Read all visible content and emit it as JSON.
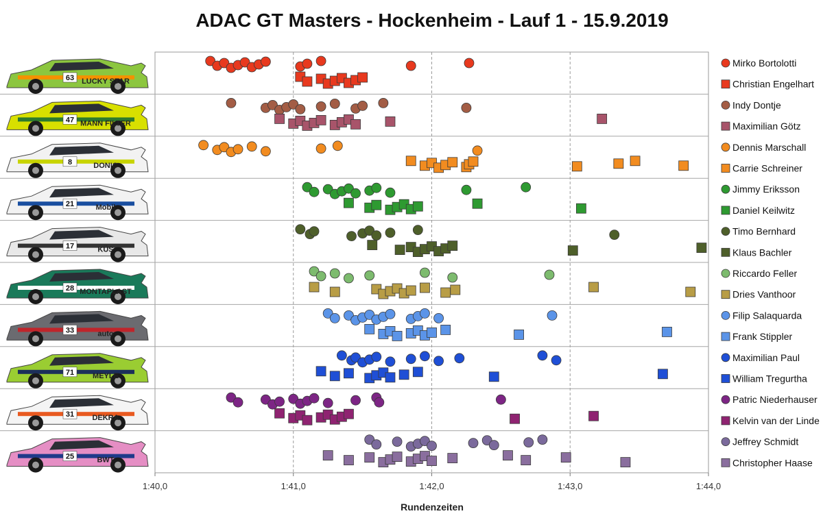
{
  "chart_data": {
    "type": "scatter",
    "title": "ADAC GT Masters - Hockenheim - Lauf 1 - 15.9.2019",
    "xlabel": "Rundenzeiten",
    "ylabel": "",
    "x_unit_note": "lap time in seconds",
    "xlim": [
      100.0,
      104.0
    ],
    "x_ticks": [
      100.0,
      101.0,
      102.0,
      103.0,
      104.0
    ],
    "x_tick_labels": [
      "1:40,0",
      "1:41,0",
      "1:42,0",
      "1:43,0",
      "1:44,0"
    ],
    "grid": "vertical dashed",
    "legend_position": "right",
    "series": [
      {
        "name": "Mirko Bortolotti",
        "marker": "circle",
        "color": "#e8391e",
        "team": 1,
        "x": [
          100.4,
          100.45,
          100.5,
          100.55,
          100.6,
          100.65,
          100.7,
          100.75,
          100.8,
          101.05,
          101.1,
          101.2,
          101.85,
          102.27
        ]
      },
      {
        "name": "Christian Engelhart",
        "marker": "square",
        "color": "#e8391e",
        "team": 1,
        "x": [
          101.05,
          101.1,
          101.2,
          101.25,
          101.3,
          101.35,
          101.4,
          101.45,
          101.5
        ]
      },
      {
        "name": "Indy Dontje",
        "marker": "circle",
        "color": "#a35d45",
        "team": 2,
        "x": [
          100.55,
          100.8,
          100.85,
          100.9,
          100.95,
          101.0,
          101.05,
          101.2,
          101.3,
          101.45,
          101.5,
          101.65,
          102.25
        ]
      },
      {
        "name": "Maximilian Götz",
        "marker": "square",
        "color": "#a8546a",
        "team": 2,
        "x": [
          100.9,
          101.0,
          101.05,
          101.1,
          101.15,
          101.2,
          101.3,
          101.35,
          101.4,
          101.45,
          101.7,
          103.23
        ]
      },
      {
        "name": "Dennis Marschall",
        "marker": "circle",
        "color": "#f28c20",
        "team": 3,
        "x": [
          100.35,
          100.45,
          100.5,
          100.55,
          100.6,
          100.7,
          100.8,
          101.2,
          101.32,
          102.33
        ]
      },
      {
        "name": "Carrie Schreiner",
        "marker": "square",
        "color": "#f28c20",
        "team": 3,
        "x": [
          101.85,
          101.95,
          102.0,
          102.05,
          102.1,
          102.15,
          102.25,
          102.27,
          102.3,
          103.05,
          103.35,
          103.47,
          103.82
        ]
      },
      {
        "name": "Jimmy Eriksson",
        "marker": "circle",
        "color": "#2e9a31",
        "team": 4,
        "x": [
          101.1,
          101.15,
          101.25,
          101.3,
          101.35,
          101.4,
          101.45,
          101.55,
          101.6,
          101.7,
          102.25,
          102.68
        ]
      },
      {
        "name": "Daniel Keilwitz",
        "marker": "square",
        "color": "#2e9a31",
        "team": 4,
        "x": [
          101.4,
          101.55,
          101.6,
          101.7,
          101.75,
          101.8,
          101.85,
          101.9,
          102.33,
          103.08
        ]
      },
      {
        "name": "Timo Bernhard",
        "marker": "circle",
        "color": "#4e5f2a",
        "team": 5,
        "x": [
          101.05,
          101.12,
          101.15,
          101.42,
          101.5,
          101.55,
          101.6,
          101.7,
          101.9,
          103.32
        ]
      },
      {
        "name": "Klaus Bachler",
        "marker": "square",
        "color": "#4e5f2a",
        "team": 5,
        "x": [
          101.57,
          101.77,
          101.85,
          101.9,
          101.95,
          102.0,
          102.05,
          102.1,
          102.15,
          103.02,
          103.95
        ]
      },
      {
        "name": "Riccardo Feller",
        "marker": "circle",
        "color": "#7dbb6e",
        "team": 6,
        "x": [
          101.15,
          101.2,
          101.3,
          101.4,
          101.55,
          101.95,
          102.15,
          102.85
        ]
      },
      {
        "name": "Dries Vanthoor",
        "marker": "square",
        "color": "#b89d46",
        "team": 6,
        "x": [
          101.15,
          101.3,
          101.6,
          101.65,
          101.7,
          101.75,
          101.8,
          101.85,
          101.95,
          102.1,
          102.17,
          103.17,
          103.87
        ]
      },
      {
        "name": "Filip Salaquarda",
        "marker": "circle",
        "color": "#5b94e8",
        "team": 7,
        "x": [
          101.25,
          101.3,
          101.4,
          101.45,
          101.5,
          101.55,
          101.6,
          101.65,
          101.7,
          101.85,
          101.9,
          101.95,
          102.05,
          102.87
        ]
      },
      {
        "name": "Frank Stippler",
        "marker": "square",
        "color": "#5b94e8",
        "team": 7,
        "x": [
          101.55,
          101.65,
          101.7,
          101.75,
          101.85,
          101.9,
          101.95,
          102.0,
          102.1,
          102.63,
          103.7
        ]
      },
      {
        "name": "Maximilian Paul",
        "marker": "circle",
        "color": "#1f4fd6",
        "team": 8,
        "x": [
          101.35,
          101.42,
          101.45,
          101.5,
          101.55,
          101.6,
          101.7,
          101.85,
          101.95,
          102.05,
          102.2,
          102.8,
          102.9
        ]
      },
      {
        "name": "William Tregurtha",
        "marker": "square",
        "color": "#1f4fd6",
        "team": 8,
        "x": [
          101.2,
          101.3,
          101.4,
          101.55,
          101.6,
          101.65,
          101.7,
          101.8,
          101.9,
          102.45,
          103.67
        ]
      },
      {
        "name": "Patric Niederhauser",
        "marker": "circle",
        "color": "#7d2585",
        "team": 9,
        "x": [
          100.55,
          100.6,
          100.8,
          100.85,
          100.9,
          101.0,
          101.05,
          101.1,
          101.15,
          101.25,
          101.45,
          101.6,
          101.62,
          102.5
        ]
      },
      {
        "name": "Kelvin van der Linde",
        "marker": "square",
        "color": "#8f2371",
        "team": 9,
        "x": [
          100.9,
          101.0,
          101.05,
          101.1,
          101.2,
          101.25,
          101.3,
          101.35,
          101.4,
          102.6,
          103.17
        ]
      },
      {
        "name": "Jeffrey Schmidt",
        "marker": "circle",
        "color": "#7b6a9c",
        "team": 10,
        "x": [
          101.55,
          101.6,
          101.75,
          101.85,
          101.9,
          101.95,
          102.0,
          102.3,
          102.4,
          102.45,
          102.7,
          102.8
        ]
      },
      {
        "name": "Christopher Haase",
        "marker": "square",
        "color": "#8a6e9e",
        "team": 10,
        "x": [
          101.25,
          101.4,
          101.55,
          101.65,
          101.7,
          101.75,
          101.85,
          101.9,
          101.95,
          102.0,
          102.15,
          102.55,
          102.68,
          102.97,
          103.4
        ]
      }
    ],
    "cars": [
      {
        "team": 1,
        "number": "63",
        "body": "#8cc63f",
        "accent": "#f39200"
      },
      {
        "team": 2,
        "number": "47",
        "body": "#d8e000",
        "accent": "#2d7a2d"
      },
      {
        "team": 3,
        "number": "8",
        "body": "#f2f2f2",
        "accent": "#c8d400"
      },
      {
        "team": 4,
        "number": "21",
        "body": "#f2f2f2",
        "accent": "#1a4fa0"
      },
      {
        "team": 5,
        "number": "17",
        "body": "#e8e8e8",
        "accent": "#333333"
      },
      {
        "team": 6,
        "number": "28",
        "body": "#1a7a5a",
        "accent": "#ffffff"
      },
      {
        "team": 7,
        "number": "33",
        "body": "#6b6b70",
        "accent": "#c0252b"
      },
      {
        "team": 8,
        "number": "71",
        "body": "#9acd32",
        "accent": "#1c2f5a"
      },
      {
        "team": 9,
        "number": "31",
        "body": "#f4f4f4",
        "accent": "#e85a20"
      },
      {
        "team": 10,
        "number": "25",
        "body": "#e58ec4",
        "accent": "#1f3a8a"
      }
    ],
    "car_labels": [
      {
        "team": 1,
        "text": "LUCKY STAR"
      },
      {
        "team": 2,
        "text": "MANN FILTER"
      },
      {
        "team": 3,
        "text": "DONIC"
      },
      {
        "team": 4,
        "text": "Mobil"
      },
      {
        "team": 5,
        "text": "KÜS"
      },
      {
        "team": 6,
        "text": "MONTAPLAST"
      },
      {
        "team": 7,
        "text": "auto"
      },
      {
        "team": 8,
        "text": "MEYLE"
      },
      {
        "team": 9,
        "text": "DEKRA"
      },
      {
        "team": 10,
        "text": "BWT"
      }
    ]
  }
}
